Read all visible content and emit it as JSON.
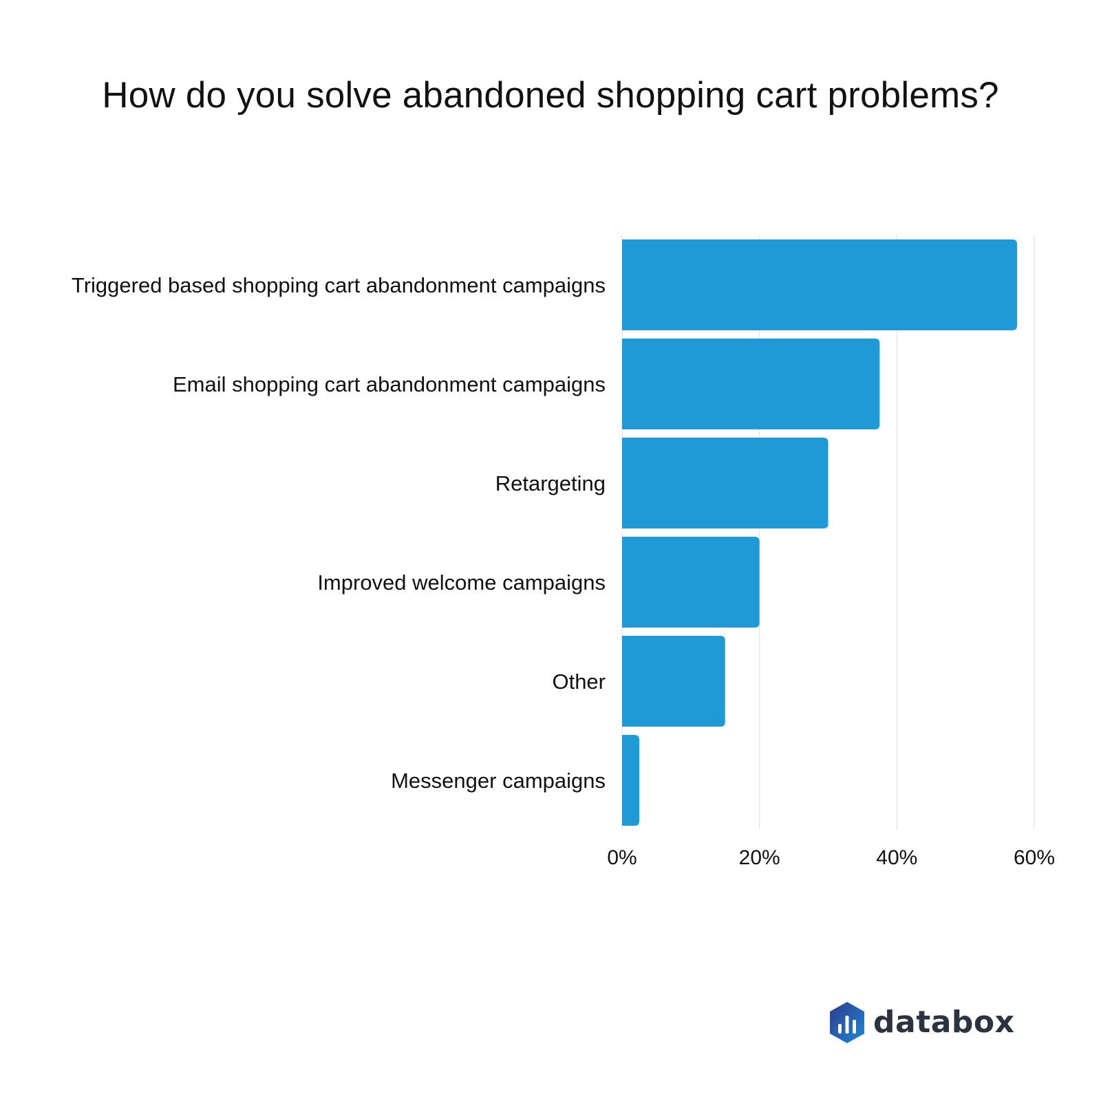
{
  "chart_data": {
    "type": "bar",
    "orientation": "horizontal",
    "title": "How do you solve abandoned shopping cart problems?",
    "categories": [
      "Triggered based shopping cart abandonment campaigns",
      "Email shopping cart abandonment campaigns",
      "Retargeting",
      "Improved welcome campaigns",
      "Other",
      "Messenger campaigns"
    ],
    "values": [
      57.5,
      37.5,
      30,
      20,
      15,
      2.5
    ],
    "unit": "%",
    "xlim": [
      0,
      60
    ],
    "xticks": [
      0,
      20,
      40,
      60
    ],
    "xtick_labels": [
      "0%",
      "20%",
      "40%",
      "60%"
    ],
    "xlabel": "",
    "ylabel": "",
    "grid": true,
    "legend": "none",
    "bar_color": "#1f9ad6",
    "grid_color": "#e3e3e3"
  },
  "brand": {
    "name": "databox",
    "colors": [
      "#2e3a8c",
      "#1e88d6"
    ]
  }
}
